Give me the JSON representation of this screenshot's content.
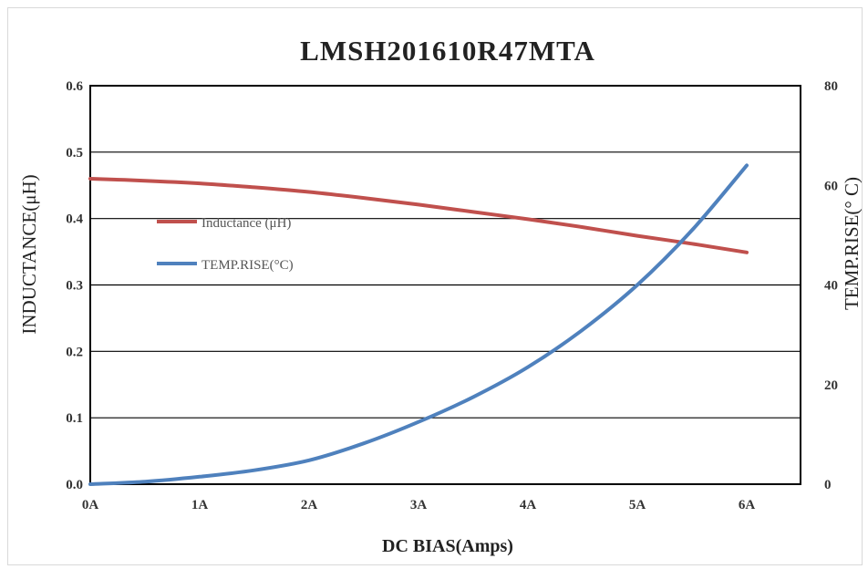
{
  "chart_data": {
    "type": "line",
    "title": "LMSH201610R47MTA",
    "xlabel": "DC BIAS(Amps)",
    "ylabel_left": "INDUCTANCE(μH)",
    "ylabel_right": "TEMP.RISE(° C)",
    "x_ticks": [
      "0A",
      "1A",
      "2A",
      "3A",
      "4A",
      "5A",
      "6A"
    ],
    "y_left_ticks": [
      "0.0",
      "0.1",
      "0.2",
      "0.3",
      "0.4",
      "0.5",
      "0.6"
    ],
    "y_right_ticks": [
      "0",
      "20",
      "40",
      "60",
      "80"
    ],
    "xlim": [
      0,
      6
    ],
    "ylim_left": [
      0,
      0.6
    ],
    "ylim_right": [
      0,
      80
    ],
    "grid": true,
    "legend_position": "upper-left inside",
    "series": [
      {
        "name": "Inductance (μH)",
        "axis": "left",
        "color": "#c0504d",
        "x": [
          0,
          0.5,
          1,
          1.5,
          2,
          2.5,
          3,
          3.5,
          4,
          4.5,
          5,
          5.5,
          6
        ],
        "y": [
          0.46,
          0.457,
          0.453,
          0.447,
          0.44,
          0.431,
          0.421,
          0.41,
          0.399,
          0.387,
          0.374,
          0.362,
          0.349
        ]
      },
      {
        "name": "TEMP.RISE(°C)",
        "axis": "right",
        "color": "#4f81bd",
        "x": [
          0,
          0.5,
          1,
          1.5,
          2,
          2.5,
          3,
          3.5,
          4,
          4.5,
          5,
          5.5,
          6
        ],
        "y": [
          0,
          0.5,
          1.5,
          2.8,
          4.8,
          8.2,
          12.5,
          17.5,
          23.5,
          31,
          40,
          51,
          64
        ]
      }
    ]
  }
}
